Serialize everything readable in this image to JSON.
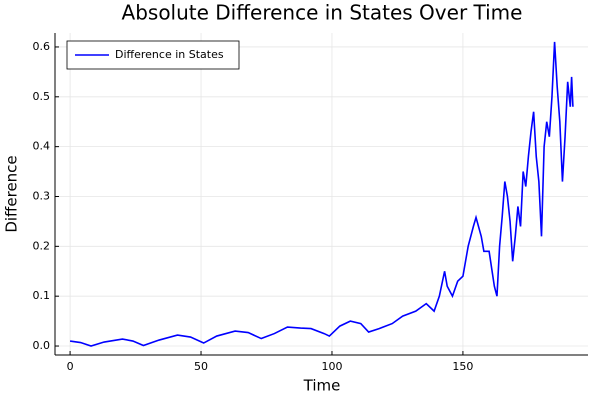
{
  "chart_data": {
    "type": "line",
    "title": "Absolute Difference in States Over Time",
    "xlabel": "Time",
    "ylabel": "Difference",
    "x": [
      0,
      4,
      8,
      13,
      20,
      24,
      28,
      34,
      41,
      46,
      51,
      56,
      63,
      68,
      73,
      78,
      83,
      88,
      92,
      97,
      99,
      103,
      107,
      111,
      114,
      118,
      123,
      127,
      132,
      136,
      139,
      141,
      143,
      144,
      146,
      148,
      150,
      152,
      154,
      155,
      157,
      158,
      160,
      162,
      163,
      164,
      165,
      166,
      167,
      168,
      169,
      170,
      171,
      172,
      173,
      174,
      175,
      176,
      177,
      178,
      179,
      180,
      181,
      182,
      183,
      184,
      185,
      186,
      187,
      188,
      189,
      190,
      191,
      191.5,
      192
    ],
    "series": [
      {
        "name": "Difference in States",
        "color": "#0000ff",
        "values": [
          0.01,
          0.007,
          0.0,
          0.008,
          0.014,
          0.01,
          0.001,
          0.012,
          0.022,
          0.018,
          0.006,
          0.02,
          0.03,
          0.027,
          0.015,
          0.025,
          0.038,
          0.036,
          0.035,
          0.025,
          0.02,
          0.04,
          0.05,
          0.045,
          0.028,
          0.035,
          0.045,
          0.06,
          0.07,
          0.085,
          0.07,
          0.1,
          0.15,
          0.12,
          0.1,
          0.13,
          0.14,
          0.2,
          0.24,
          0.258,
          0.22,
          0.19,
          0.19,
          0.12,
          0.1,
          0.2,
          0.26,
          0.33,
          0.3,
          0.25,
          0.17,
          0.22,
          0.28,
          0.24,
          0.35,
          0.32,
          0.38,
          0.43,
          0.47,
          0.38,
          0.33,
          0.22,
          0.4,
          0.45,
          0.42,
          0.5,
          0.61,
          0.52,
          0.45,
          0.33,
          0.42,
          0.53,
          0.48,
          0.54,
          0.48
        ]
      }
    ],
    "xlim": [
      -5.76,
      197.76
    ],
    "xticks": [
      0,
      50,
      100,
      150
    ],
    "ylim": [
      -0.018,
      0.628
    ],
    "yticks": [
      {
        "value": 0,
        "label": "0.0"
      },
      0.1,
      0.2,
      0.3,
      0.4,
      0.5,
      0.6
    ],
    "grid": true,
    "legend": "top-left"
  }
}
